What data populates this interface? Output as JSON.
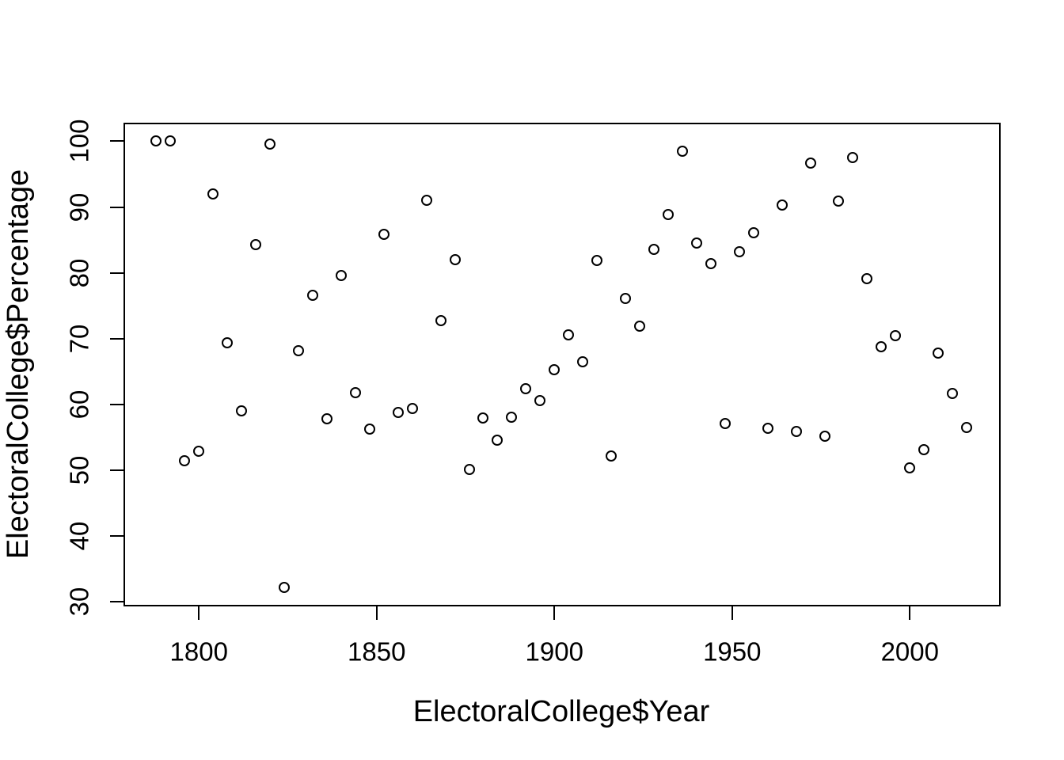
{
  "figure": {
    "background": "#ffffff",
    "foreground": "#000000"
  },
  "chart_data": {
    "type": "scatter",
    "title": "",
    "xlabel": "ElectoralCollege$Year",
    "ylabel": "ElectoralCollege$Percentage",
    "marker": "open-circle",
    "marker_color": "#000000",
    "grid": false,
    "legend": "none",
    "xlim": [
      1778.9,
      2025.1
    ],
    "ylim": [
      29.5,
      102.7
    ],
    "x_ticks": [
      1800,
      1850,
      1900,
      1950,
      2000
    ],
    "y_ticks": [
      30,
      40,
      50,
      60,
      70,
      80,
      90,
      100
    ],
    "series": [
      {
        "name": "ElectoralCollege",
        "x": [
          1788,
          1792,
          1796,
          1800,
          1804,
          1808,
          1812,
          1816,
          1820,
          1824,
          1828,
          1832,
          1836,
          1840,
          1844,
          1848,
          1852,
          1856,
          1860,
          1864,
          1868,
          1872,
          1876,
          1880,
          1884,
          1888,
          1892,
          1896,
          1900,
          1904,
          1908,
          1912,
          1916,
          1920,
          1924,
          1928,
          1932,
          1936,
          1940,
          1944,
          1948,
          1952,
          1956,
          1960,
          1964,
          1968,
          1972,
          1976,
          1980,
          1984,
          1988,
          1992,
          1996,
          2000,
          2004,
          2008,
          2012,
          2016
        ],
        "y": [
          100.0,
          100.0,
          51.45,
          52.9,
          92.05,
          69.32,
          58.99,
          84.33,
          99.57,
          32.18,
          68.2,
          76.57,
          57.82,
          79.59,
          61.82,
          56.21,
          85.81,
          58.78,
          59.41,
          90.99,
          72.79,
          81.95,
          50.14,
          57.99,
          54.61,
          58.1,
          62.39,
          60.63,
          65.32,
          70.59,
          66.46,
          81.92,
          52.17,
          76.08,
          71.94,
          83.62,
          88.89,
          98.49,
          84.56,
          81.36,
          57.06,
          83.24,
          86.06,
          56.42,
          90.33,
          55.95,
          96.65,
          55.2,
          90.89,
          97.58,
          79.18,
          68.77,
          70.45,
          50.37,
          53.16,
          67.84,
          61.71,
          56.5
        ]
      }
    ]
  }
}
